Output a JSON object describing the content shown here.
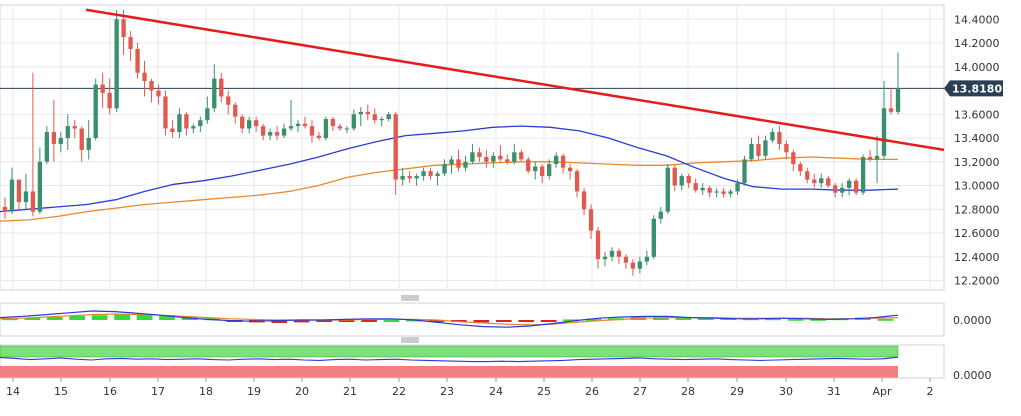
{
  "colors": {
    "up": "#3a8f6e",
    "down": "#e05a4f",
    "sma_fast": "#2b3bd6",
    "sma_slow": "#e6882e",
    "trendline": "#e31d1d",
    "current_tag_bg": "#2c3e55",
    "grid": "#e8e8e8",
    "histo_pos": "#33dd33",
    "histo_neg": "#dd2222",
    "band_green": "#7de07d",
    "band_red": "#f08080"
  },
  "chart_data": [
    {
      "type": "candlestick",
      "title": "",
      "x_labels": [
        "14",
        "15",
        "16",
        "17",
        "18",
        "19",
        "20",
        "21",
        "22",
        "23",
        "24",
        "25",
        "26",
        "27",
        "28",
        "29",
        "30",
        "31",
        "Apr",
        "2"
      ],
      "yticks": [
        "14.4000",
        "14.2000",
        "14.0000",
        "13.6000",
        "13.4000",
        "13.2000",
        "13.0000",
        "12.8000",
        "12.6000",
        "12.4000",
        "12.2000"
      ],
      "ylim": [
        12.12,
        14.52
      ],
      "current_price": 13.818,
      "current_price_label": "13.8180",
      "candles": [
        [
          12.82,
          12.9,
          12.72,
          12.78
        ],
        [
          12.78,
          13.15,
          12.76,
          13.05
        ],
        [
          13.05,
          13.05,
          12.8,
          12.86
        ],
        [
          12.86,
          13.1,
          12.8,
          12.95
        ],
        [
          12.95,
          13.95,
          12.74,
          12.78
        ],
        [
          12.78,
          13.32,
          12.76,
          13.2
        ],
        [
          13.2,
          13.5,
          13.18,
          13.45
        ],
        [
          13.45,
          13.72,
          13.2,
          13.35
        ],
        [
          13.35,
          13.45,
          13.28,
          13.4
        ],
        [
          13.4,
          13.6,
          13.3,
          13.5
        ],
        [
          13.5,
          13.55,
          13.4,
          13.48
        ],
        [
          13.48,
          13.5,
          13.2,
          13.3
        ],
        [
          13.3,
          13.55,
          13.22,
          13.4
        ],
        [
          13.4,
          13.9,
          13.38,
          13.85
        ],
        [
          13.85,
          13.95,
          13.65,
          13.78
        ],
        [
          13.78,
          13.9,
          13.6,
          13.65
        ],
        [
          13.65,
          14.48,
          13.62,
          14.4
        ],
        [
          14.4,
          14.48,
          14.1,
          14.25
        ],
        [
          14.25,
          14.3,
          14.05,
          14.15
        ],
        [
          14.15,
          14.2,
          13.9,
          13.95
        ],
        [
          13.95,
          14.05,
          13.75,
          13.88
        ],
        [
          13.88,
          13.9,
          13.7,
          13.8
        ],
        [
          13.8,
          13.85,
          13.68,
          13.75
        ],
        [
          13.75,
          13.8,
          13.42,
          13.48
        ],
        [
          13.48,
          13.55,
          13.4,
          13.45
        ],
        [
          13.45,
          13.65,
          13.4,
          13.6
        ],
        [
          13.6,
          13.62,
          13.42,
          13.48
        ],
        [
          13.48,
          13.52,
          13.44,
          13.5
        ],
        [
          13.5,
          13.58,
          13.45,
          13.55
        ],
        [
          13.55,
          13.75,
          13.52,
          13.65
        ],
        [
          13.65,
          14.02,
          13.62,
          13.9
        ],
        [
          13.9,
          13.95,
          13.7,
          13.75
        ],
        [
          13.75,
          13.8,
          13.6,
          13.68
        ],
        [
          13.68,
          13.7,
          13.52,
          13.58
        ],
        [
          13.58,
          13.6,
          13.44,
          13.48
        ],
        [
          13.48,
          13.58,
          13.44,
          13.55
        ],
        [
          13.55,
          13.58,
          13.45,
          13.5
        ],
        [
          13.5,
          13.52,
          13.38,
          13.42
        ],
        [
          13.42,
          13.48,
          13.38,
          13.45
        ],
        [
          13.45,
          13.5,
          13.38,
          13.42
        ],
        [
          13.42,
          13.52,
          13.4,
          13.48
        ],
        [
          13.48,
          13.72,
          13.46,
          13.5
        ],
        [
          13.5,
          13.55,
          13.45,
          13.52
        ],
        [
          13.52,
          13.58,
          13.48,
          13.5
        ],
        [
          13.5,
          13.55,
          13.36,
          13.42
        ],
        [
          13.42,
          13.45,
          13.38,
          13.4
        ],
        [
          13.4,
          13.58,
          13.38,
          13.56
        ],
        [
          13.56,
          13.58,
          13.46,
          13.5
        ],
        [
          13.5,
          13.52,
          13.46,
          13.48
        ],
        [
          13.48,
          13.5,
          13.44,
          13.48
        ],
        [
          13.48,
          13.64,
          13.46,
          13.6
        ],
        [
          13.6,
          13.66,
          13.5,
          13.62
        ],
        [
          13.62,
          13.68,
          13.55,
          13.6
        ],
        [
          13.6,
          13.65,
          13.52,
          13.55
        ],
        [
          13.55,
          13.58,
          13.5,
          13.56
        ],
        [
          13.56,
          13.62,
          13.54,
          13.6
        ],
        [
          13.6,
          13.62,
          12.92,
          13.05
        ],
        [
          13.05,
          13.15,
          13.0,
          13.08
        ],
        [
          13.08,
          13.12,
          13.02,
          13.06
        ],
        [
          13.06,
          13.1,
          13.0,
          13.08
        ],
        [
          13.08,
          13.15,
          13.04,
          13.12
        ],
        [
          13.12,
          13.15,
          13.05,
          13.08
        ],
        [
          13.08,
          13.12,
          13.0,
          13.1
        ],
        [
          13.1,
          13.22,
          13.08,
          13.18
        ],
        [
          13.18,
          13.25,
          13.1,
          13.22
        ],
        [
          13.22,
          13.3,
          13.12,
          13.15
        ],
        [
          13.15,
          13.25,
          13.12,
          13.2
        ],
        [
          13.2,
          13.35,
          13.18,
          13.28
        ],
        [
          13.28,
          13.32,
          13.2,
          13.24
        ],
        [
          13.24,
          13.3,
          13.15,
          13.2
        ],
        [
          13.2,
          13.28,
          13.15,
          13.25
        ],
        [
          13.25,
          13.34,
          13.2,
          13.22
        ],
        [
          13.22,
          13.26,
          13.18,
          13.2
        ],
        [
          13.2,
          13.35,
          13.18,
          13.28
        ],
        [
          13.28,
          13.3,
          13.2,
          13.22
        ],
        [
          13.22,
          13.24,
          13.1,
          13.12
        ],
        [
          13.12,
          13.2,
          13.05,
          13.16
        ],
        [
          13.16,
          13.18,
          13.02,
          13.08
        ],
        [
          13.08,
          13.22,
          13.05,
          13.18
        ],
        [
          13.18,
          13.28,
          13.15,
          13.25
        ],
        [
          13.25,
          13.27,
          13.1,
          13.15
        ],
        [
          13.15,
          13.18,
          13.05,
          13.12
        ],
        [
          13.12,
          13.14,
          12.9,
          12.95
        ],
        [
          12.95,
          12.98,
          12.75,
          12.8
        ],
        [
          12.8,
          12.84,
          12.55,
          12.62
        ],
        [
          12.62,
          12.65,
          12.3,
          12.38
        ],
        [
          12.38,
          12.44,
          12.32,
          12.4
        ],
        [
          12.4,
          12.48,
          12.36,
          12.45
        ],
        [
          12.45,
          12.47,
          12.34,
          12.4
        ],
        [
          12.4,
          12.42,
          12.3,
          12.35
        ],
        [
          12.35,
          12.38,
          12.24,
          12.3
        ],
        [
          12.3,
          12.4,
          12.26,
          12.36
        ],
        [
          12.36,
          12.45,
          12.33,
          12.4
        ],
        [
          12.4,
          12.75,
          12.38,
          12.72
        ],
        [
          12.72,
          12.82,
          12.68,
          12.78
        ],
        [
          12.78,
          13.18,
          12.76,
          13.15
        ],
        [
          13.15,
          13.18,
          12.95,
          13.0
        ],
        [
          13.0,
          13.1,
          12.96,
          13.08
        ],
        [
          13.08,
          13.1,
          12.98,
          13.02
        ],
        [
          13.02,
          13.06,
          12.94,
          12.96
        ],
        [
          12.96,
          13.02,
          12.92,
          12.98
        ],
        [
          12.98,
          13.0,
          12.9,
          12.94
        ],
        [
          12.94,
          12.98,
          12.9,
          12.95
        ],
        [
          12.95,
          12.98,
          12.9,
          12.93
        ],
        [
          12.93,
          12.97,
          12.9,
          12.95
        ],
        [
          12.95,
          13.05,
          12.92,
          13.02
        ],
        [
          13.02,
          13.25,
          13.0,
          13.22
        ],
        [
          13.22,
          13.4,
          13.2,
          13.35
        ],
        [
          13.35,
          13.42,
          13.22,
          13.25
        ],
        [
          13.25,
          13.42,
          13.22,
          13.38
        ],
        [
          13.38,
          13.48,
          13.36,
          13.45
        ],
        [
          13.45,
          13.5,
          13.3,
          13.35
        ],
        [
          13.35,
          13.38,
          13.22,
          13.28
        ],
        [
          13.28,
          13.3,
          13.12,
          13.18
        ],
        [
          13.18,
          13.2,
          13.08,
          13.12
        ],
        [
          13.12,
          13.15,
          13.02,
          13.05
        ],
        [
          13.05,
          13.1,
          12.98,
          13.02
        ],
        [
          13.02,
          13.1,
          12.98,
          13.06
        ],
        [
          13.06,
          13.08,
          12.98,
          13.0
        ],
        [
          13.0,
          13.02,
          12.9,
          12.94
        ],
        [
          12.94,
          13.02,
          12.9,
          12.98
        ],
        [
          12.98,
          13.06,
          12.92,
          13.04
        ],
        [
          13.04,
          13.06,
          12.92,
          12.94
        ],
        [
          12.94,
          13.26,
          12.92,
          13.24
        ],
        [
          13.24,
          13.3,
          13.2,
          13.22
        ],
        [
          13.22,
          13.42,
          13.02,
          13.25
        ],
        [
          13.25,
          13.88,
          13.22,
          13.65
        ],
        [
          13.65,
          13.82,
          13.6,
          13.62
        ],
        [
          13.62,
          14.12,
          13.6,
          13.82
        ]
      ],
      "sma_fast": [
        12.78,
        12.8,
        12.82,
        12.84,
        12.88,
        12.95,
        13.01,
        13.04,
        13.08,
        13.13,
        13.18,
        13.24,
        13.31,
        13.37,
        13.42,
        13.44,
        13.46,
        13.49,
        13.5,
        13.49,
        13.46,
        13.4,
        13.32,
        13.25,
        13.15,
        13.06,
        12.99,
        12.97,
        12.97,
        12.96,
        12.96,
        12.97
      ],
      "sma_slow": [
        12.7,
        12.71,
        12.74,
        12.78,
        12.81,
        12.84,
        12.86,
        12.88,
        12.9,
        12.92,
        12.95,
        13.0,
        13.07,
        13.11,
        13.14,
        13.17,
        13.18,
        13.19,
        13.2,
        13.2,
        13.19,
        13.18,
        13.17,
        13.17,
        13.19,
        13.2,
        13.21,
        13.23,
        13.24,
        13.23,
        13.22,
        13.22
      ],
      "trendline": [
        [
          14.48,
          "16"
        ],
        [
          13.3,
          "after Apr"
        ]
      ]
    },
    {
      "type": "bar",
      "subtype": "histogram-oscillator",
      "yticks": [
        "0.0000"
      ],
      "histogram": [
        0.3,
        0.4,
        0.5,
        0.7,
        0.8,
        1.0,
        1.0,
        0.8,
        0.6,
        0.3,
        -0.2,
        -0.4,
        -0.5,
        -0.4,
        -0.3,
        -0.2,
        -0.1,
        0.0,
        0.1,
        -0.2,
        -0.3,
        -0.4,
        -0.3,
        -0.2,
        -0.1,
        0.1,
        0.2,
        0.3,
        0.5,
        0.6,
        0.5,
        0.4,
        0.4,
        0.3,
        0.3,
        0.2,
        0.2,
        0.3,
        0.4,
        0.2
      ],
      "line_a": [
        0.4,
        0.6,
        0.9,
        1.2,
        1.5,
        1.4,
        1.1,
        0.8,
        0.4,
        0.1,
        -0.1,
        -0.2,
        -0.1,
        0.0,
        0.0,
        0.1,
        0.2,
        0.2,
        0.0,
        -0.4,
        -0.8,
        -1.1,
        -1.2,
        -1.0,
        -0.6,
        -0.1,
        0.3,
        0.5,
        0.6,
        0.6,
        0.4,
        0.3,
        0.2,
        0.2,
        0.3,
        0.2,
        0.1,
        0.2,
        0.4,
        0.8
      ],
      "line_b": [
        0.2,
        0.3,
        0.5,
        0.7,
        0.9,
        1.0,
        0.9,
        0.8,
        0.6,
        0.4,
        0.2,
        0.1,
        0.0,
        0.0,
        0.0,
        0.0,
        0.1,
        0.1,
        0.1,
        0.0,
        -0.3,
        -0.5,
        -0.7,
        -0.8,
        -0.7,
        -0.4,
        -0.1,
        0.1,
        0.3,
        0.4,
        0.4,
        0.4,
        0.3,
        0.3,
        0.3,
        0.3,
        0.2,
        0.2,
        0.3,
        0.4
      ]
    },
    {
      "type": "line",
      "subtype": "band-oscillator",
      "yticks": [
        "0.0000"
      ],
      "line": [
        0.55,
        0.45,
        0.3,
        0.4,
        0.5,
        0.35,
        0.25,
        0.4,
        0.45,
        0.35,
        0.4,
        0.3,
        0.35,
        0.4,
        0.3,
        0.25,
        0.35,
        0.4,
        0.3,
        0.35,
        0.25,
        0.2,
        0.3,
        0.35,
        0.25,
        0.3,
        0.35,
        0.25,
        0.2,
        0.15,
        0.1,
        0.05,
        0.05,
        0.1,
        0.05,
        0.1,
        0.15,
        0.2,
        0.3,
        0.35,
        0.4,
        0.45,
        0.5,
        0.4,
        0.35,
        0.3,
        0.35,
        0.4,
        0.3,
        0.25,
        0.2,
        0.25,
        0.3,
        0.35,
        0.4,
        0.45,
        0.4,
        0.35,
        0.4,
        0.6
      ]
    }
  ]
}
